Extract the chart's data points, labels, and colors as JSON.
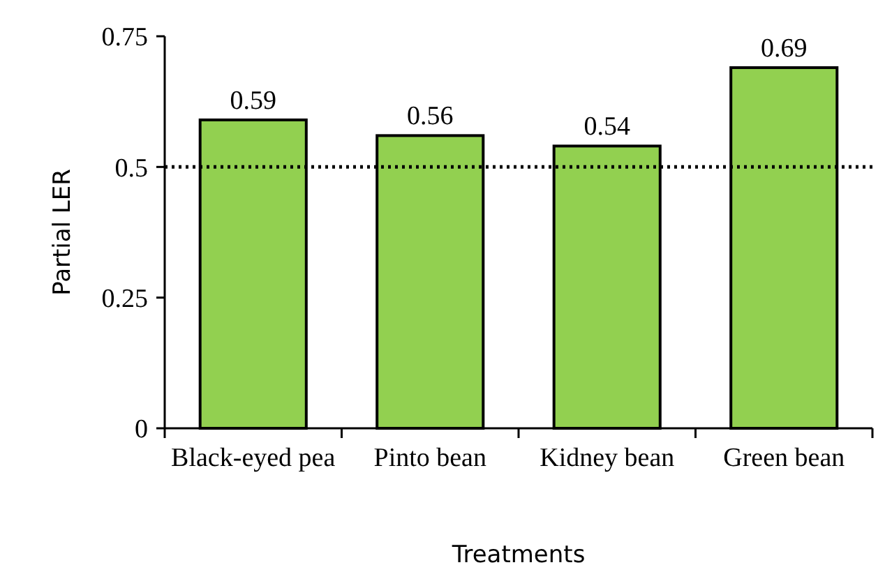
{
  "chart_data": {
    "type": "bar",
    "xlabel": "Treatments",
    "ylabel": "Partial LER",
    "categories": [
      "Black-eyed pea",
      "Pinto bean",
      "Kidney bean",
      "Green bean"
    ],
    "values": [
      0.59,
      0.56,
      0.54,
      0.69
    ],
    "color": "#92d050",
    "ylim": [
      0,
      0.75
    ],
    "yticks": [
      0,
      0.25,
      0.5,
      0.75
    ],
    "grid": false,
    "data_labels": true,
    "ref_lines": [
      {
        "axis": "y",
        "value": 0.5,
        "color": "#000000",
        "line_style": "dotted"
      }
    ]
  }
}
